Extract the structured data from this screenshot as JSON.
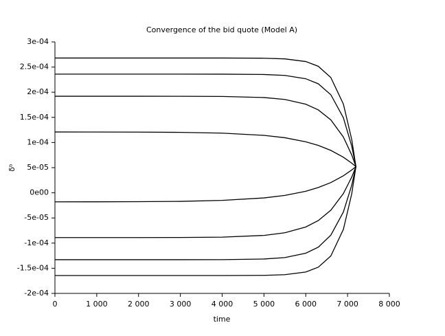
{
  "chart_data": {
    "type": "line",
    "title": "Convergence of the bid quote (Model A)",
    "xlabel": "time",
    "ylabel": "δᵇ",
    "x": [
      0,
      1000,
      2000,
      3000,
      4000,
      5000,
      5500,
      6000,
      6300,
      6600,
      6900,
      7100,
      7200
    ],
    "series": [
      {
        "name": null,
        "color": "#000000",
        "values": [
          0.000268,
          0.000268,
          0.000268,
          0.000268,
          0.000268,
          0.0002676,
          0.0002663,
          0.000261,
          0.0002515,
          0.0002291,
          0.0001764,
          0.0001058,
          5.2e-05
        ]
      },
      {
        "name": null,
        "color": "#000000",
        "values": [
          0.000236,
          0.000236,
          0.000236,
          0.000236,
          0.0002359,
          0.0002352,
          0.0002334,
          0.0002268,
          0.0002167,
          0.000195,
          0.0001492,
          9.27e-05,
          5.2e-05
        ]
      },
      {
        "name": null,
        "color": "#000000",
        "values": [
          0.000192,
          0.000192,
          0.000192,
          0.0001919,
          0.0001916,
          0.0001894,
          0.0001856,
          0.0001762,
          0.0001648,
          0.000145,
          0.0001108,
          7.52e-05,
          5.2e-05
        ]
      },
      {
        "name": null,
        "color": "#000000",
        "values": [
          0.00012097,
          0.0001209,
          0.0001207,
          0.0001202,
          0.0001186,
          0.0001142,
          0.0001095,
          0.0001014,
          9.42e-05,
          8.43e-05,
          7.07e-05,
          5.89e-05,
          5.2e-05
        ]
      },
      {
        "name": null,
        "color": "#000000",
        "values": [
          -1.795e-05,
          -1.79e-05,
          -1.76e-05,
          -1.7e-05,
          -1.51e-05,
          -1.02e-05,
          -5.2e-06,
          3.1e-06,
          1.05e-05,
          2.04e-05,
          3.39e-05,
          4.54e-05,
          5.2e-05
        ]
      },
      {
        "name": null,
        "color": "#000000",
        "values": [
          -8.9e-05,
          -8.9e-05,
          -8.896e-05,
          -8.88e-05,
          -8.81e-05,
          -8.47e-05,
          -7.95e-05,
          -6.8e-05,
          -5.52e-05,
          -3.46e-05,
          -1.4e-06,
          3.13e-05,
          5.2e-05
        ]
      },
      {
        "name": null,
        "color": "#000000",
        "values": [
          -0.000133,
          -0.000133,
          -0.000133,
          -0.000133,
          -0.00013285,
          -0.0001316,
          -0.0001288,
          -0.0001201,
          -0.000108,
          -8.42e-05,
          -3.81e-05,
          1.52e-05,
          5.2e-05
        ]
      },
      {
        "name": null,
        "color": "#000000",
        "values": [
          -0.0001645,
          -0.0001645,
          -0.0001645,
          -0.0001645,
          -0.0001645,
          -0.0001641,
          -0.0001628,
          -0.0001575,
          -0.0001479,
          -0.0001255,
          -7.27e-05,
          -1.9e-06,
          5.2e-05
        ]
      }
    ],
    "xlim": [
      0,
      8000
    ],
    "xticks": [
      0,
      {
        "value": 1000,
        "label": "1 000"
      },
      {
        "value": 2000,
        "label": "2 000"
      },
      {
        "value": 3000,
        "label": "3 000"
      },
      {
        "value": 4000,
        "label": "4 000"
      },
      {
        "value": 5000,
        "label": "5 000"
      },
      {
        "value": 6000,
        "label": "6 000"
      },
      {
        "value": 7000,
        "label": "7 000"
      },
      {
        "value": 8000,
        "label": "8 000"
      }
    ],
    "ylim": [
      -0.0002,
      0.0003
    ],
    "yticks": [
      {
        "value": -0.0002,
        "label": "-2e-04"
      },
      {
        "value": -0.00015,
        "label": "-1.5e-04"
      },
      {
        "value": -0.0001,
        "label": "-1e-04"
      },
      {
        "value": -5e-05,
        "label": "-5e-05"
      },
      {
        "value": 0,
        "label": "0e00"
      },
      {
        "value": 5e-05,
        "label": "5e-05"
      },
      {
        "value": 0.0001,
        "label": "1e-04"
      },
      {
        "value": 0.00015,
        "label": "1.5e-04"
      },
      {
        "value": 0.0002,
        "label": "2e-04"
      },
      {
        "value": 0.00025,
        "label": "2.5e-04"
      },
      {
        "value": 0.0003,
        "label": "3e-04"
      }
    ],
    "grid": false
  }
}
